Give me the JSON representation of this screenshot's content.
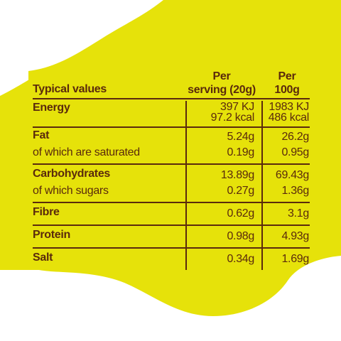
{
  "colors": {
    "background": "#ffffff",
    "blob": "#e6e20a",
    "text": "#5a2a0c"
  },
  "header": {
    "typical_values": "Typical values",
    "per_serving_line1": "Per",
    "per_serving_line2": "serving (20g)",
    "per_100g_line1": "Per",
    "per_100g_line2": "100g"
  },
  "rows": {
    "energy": {
      "label": "Energy",
      "serving_kj": "397 KJ",
      "serving_kcal": "97.2 kcal",
      "per100_kj": "1983 KJ",
      "per100_kcal": "486 kcal"
    },
    "fat": {
      "label": "Fat",
      "serving": "5.24g",
      "per100": "26.2g"
    },
    "saturated": {
      "label": "of which are saturated",
      "serving": "0.19g",
      "per100": "0.95g"
    },
    "carbohydrates": {
      "label": "Carbohydrates",
      "serving": "13.89g",
      "per100": "69.43g"
    },
    "sugars": {
      "label": "of which sugars",
      "serving": "0.27g",
      "per100": "1.36g"
    },
    "fibre": {
      "label": "Fibre",
      "serving": "0.62g",
      "per100": "3.1g"
    },
    "protein": {
      "label": "Protein",
      "serving": "0.98g",
      "per100": "4.93g"
    },
    "salt": {
      "label": "Salt",
      "serving": "0.34g",
      "per100": "1.69g"
    }
  }
}
